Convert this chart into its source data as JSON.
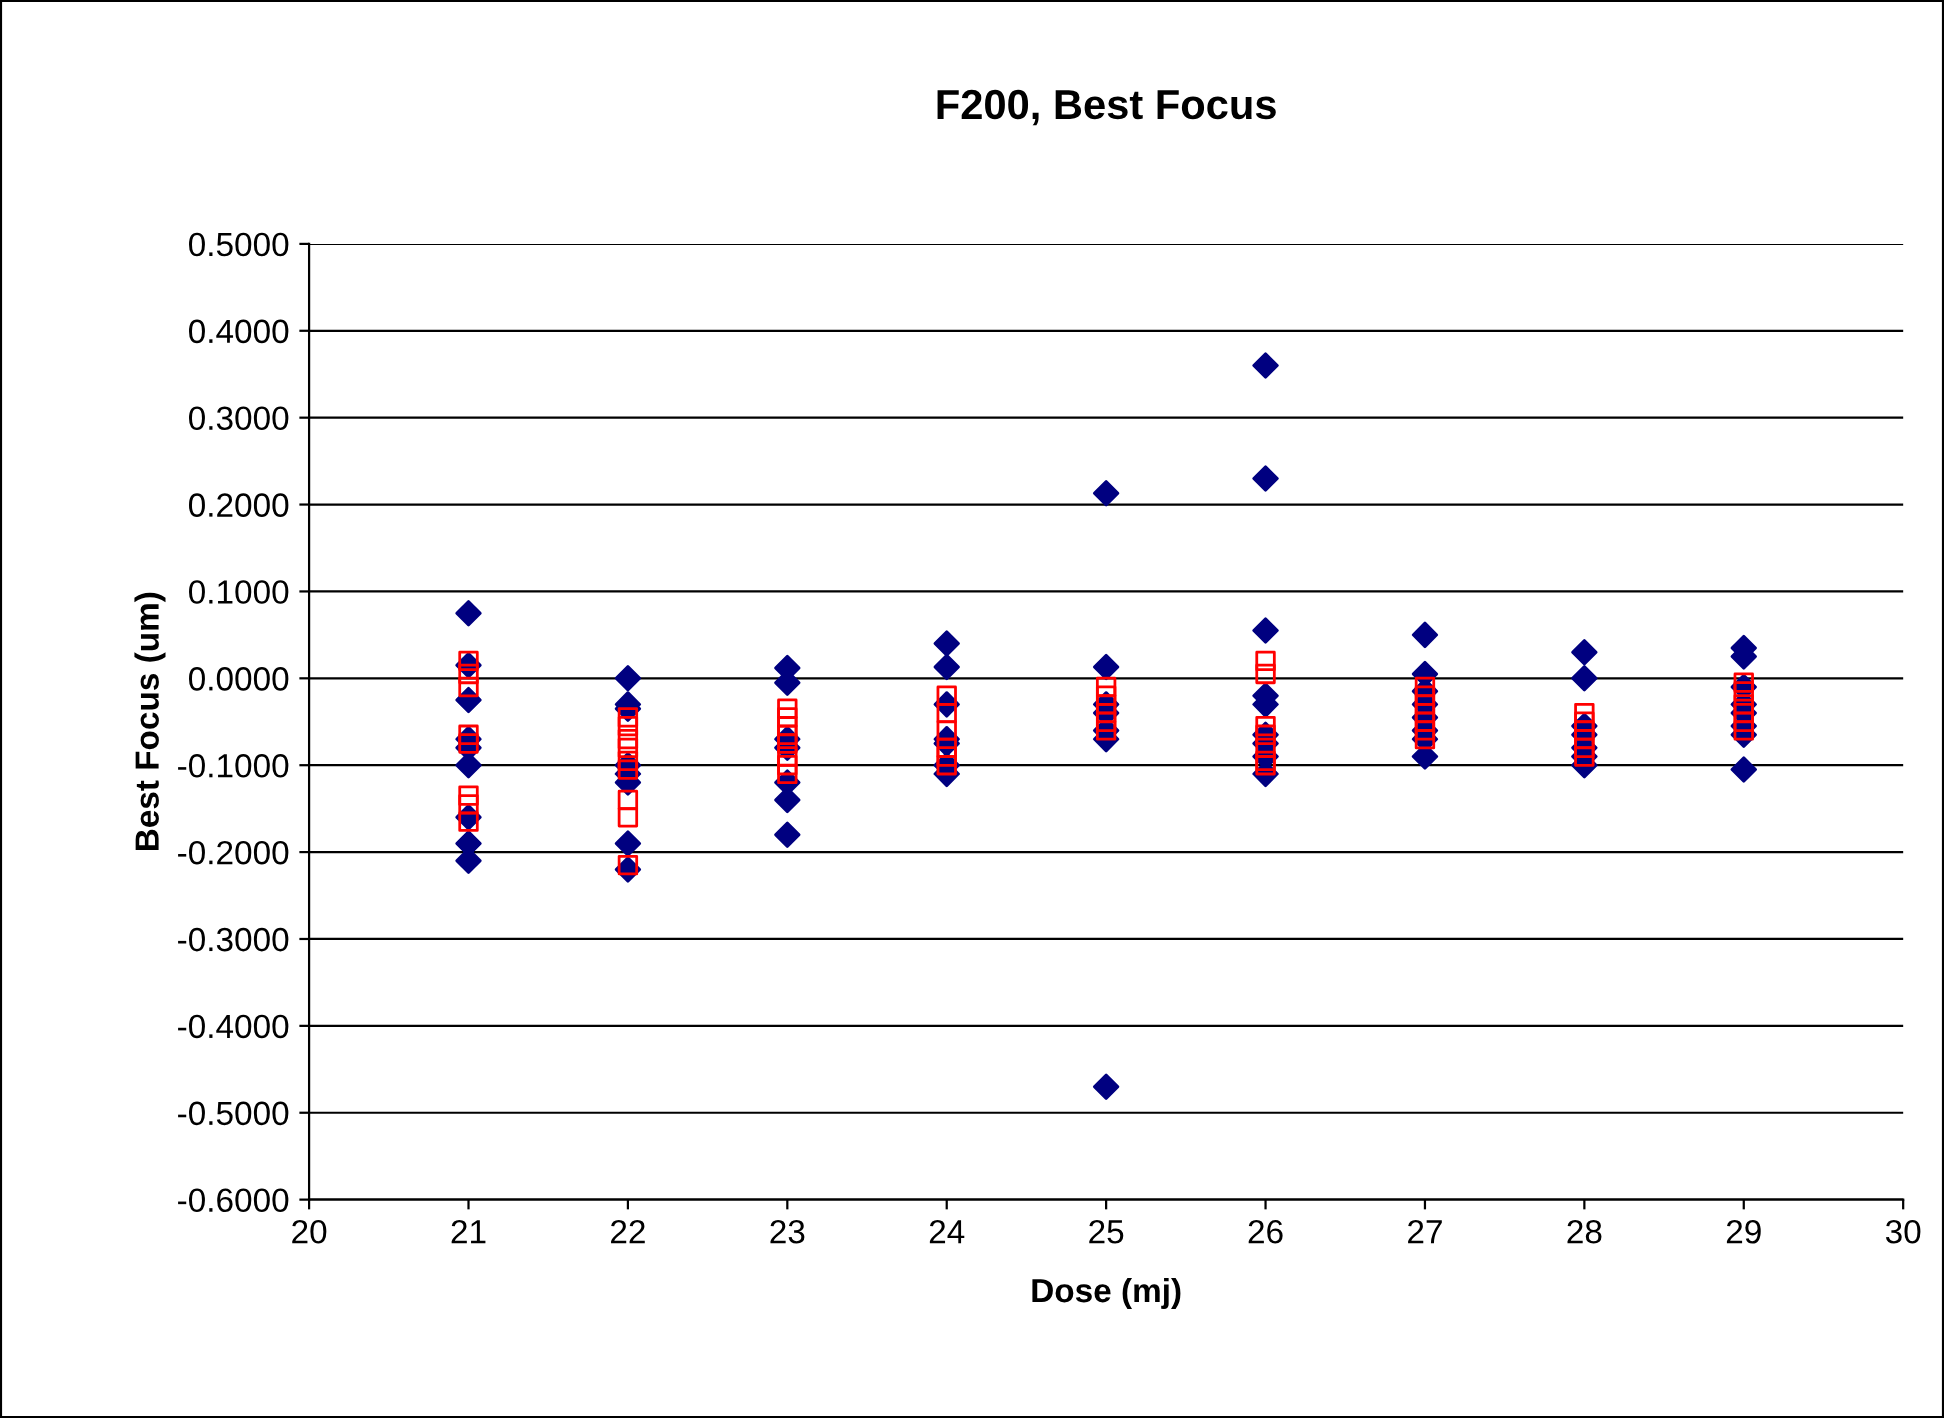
{
  "chart_data": {
    "type": "scatter",
    "title": "F200, Best Focus",
    "xlabel": "Dose (mj)",
    "ylabel": "Best Focus (um)",
    "xlim": [
      20,
      30
    ],
    "xticks": [
      20,
      21,
      22,
      23,
      24,
      25,
      26,
      27,
      28,
      29,
      30
    ],
    "ylim": [
      -0.6,
      0.5
    ],
    "yticks": [
      {
        "value": -0.6,
        "label": "-0.6000"
      },
      {
        "value": -0.5,
        "label": "-0.5000"
      },
      {
        "value": -0.4,
        "label": "-0.4000"
      },
      {
        "value": -0.3,
        "label": "-0.3000"
      },
      {
        "value": -0.2,
        "label": "-0.2000"
      },
      {
        "value": -0.1,
        "label": "-0.1000"
      },
      {
        "value": 0,
        "label": "0.0000"
      },
      {
        "value": 0.1,
        "label": "0.1000"
      },
      {
        "value": 0.2,
        "label": "0.2000"
      },
      {
        "value": 0.3,
        "label": "0.3000"
      },
      {
        "value": 0.4,
        "label": "0.4000"
      },
      {
        "value": 0.5,
        "label": "0.5000"
      }
    ],
    "grid": "y",
    "legend": false,
    "series": [
      {
        "color": "#000080",
        "marker": "diamond",
        "x": [
          21,
          21,
          21,
          21,
          21,
          21,
          21,
          21,
          21,
          22,
          22,
          22,
          22,
          22,
          22,
          22,
          22,
          23,
          23,
          23,
          23,
          23,
          23,
          23,
          24,
          24,
          24,
          24,
          24,
          24,
          24,
          25,
          25,
          25,
          25,
          25,
          25,
          25,
          26,
          26,
          26,
          26,
          26,
          26,
          26,
          26,
          26,
          27,
          27,
          27,
          27,
          27,
          27,
          27,
          27,
          28,
          28,
          28,
          28,
          28,
          28,
          28,
          29,
          29,
          29,
          29,
          29,
          29,
          29,
          29
        ],
        "values": [
          0.075,
          0.015,
          -0.025,
          -0.07,
          -0.08,
          -0.1,
          -0.16,
          -0.19,
          -0.21,
          0.0,
          -0.03,
          -0.035,
          -0.1,
          -0.11,
          -0.12,
          -0.19,
          -0.22,
          0.012,
          -0.005,
          -0.07,
          -0.08,
          -0.12,
          -0.14,
          -0.18,
          0.04,
          0.013,
          -0.03,
          -0.07,
          -0.075,
          -0.1,
          -0.11,
          0.213,
          0.013,
          -0.03,
          -0.04,
          -0.06,
          -0.07,
          -0.47,
          0.36,
          0.23,
          0.055,
          -0.02,
          -0.03,
          -0.065,
          -0.075,
          -0.09,
          -0.11,
          0.05,
          0.005,
          -0.015,
          -0.03,
          -0.045,
          -0.06,
          -0.07,
          -0.09,
          0.03,
          0.0,
          -0.055,
          -0.065,
          -0.08,
          -0.09,
          -0.1,
          0.035,
          0.025,
          -0.01,
          -0.03,
          -0.04,
          -0.055,
          -0.065,
          -0.105
        ]
      },
      {
        "color": "#ff0000",
        "marker": "square",
        "x": [
          21,
          21,
          21,
          21,
          21,
          21,
          21,
          21,
          22,
          22,
          22,
          22,
          22,
          22,
          22,
          22,
          22,
          23,
          23,
          23,
          23,
          23,
          23,
          23,
          23,
          24,
          24,
          24,
          24,
          24,
          24,
          25,
          25,
          25,
          25,
          25,
          25,
          26,
          26,
          26,
          26,
          26,
          26,
          26,
          27,
          27,
          27,
          27,
          27,
          27,
          27,
          28,
          28,
          28,
          28,
          28,
          28,
          29,
          29,
          29,
          29,
          29,
          29
        ],
        "values": [
          0.02,
          0.005,
          -0.01,
          -0.065,
          -0.075,
          -0.135,
          -0.145,
          -0.165,
          -0.045,
          -0.055,
          -0.07,
          -0.08,
          -0.095,
          -0.105,
          -0.14,
          -0.16,
          -0.215,
          -0.035,
          -0.045,
          -0.055,
          -0.065,
          -0.075,
          -0.09,
          -0.1,
          -0.11,
          -0.02,
          -0.04,
          -0.06,
          -0.08,
          -0.09,
          -0.1,
          -0.01,
          -0.02,
          -0.03,
          -0.04,
          -0.05,
          -0.06,
          0.02,
          0.005,
          -0.055,
          -0.065,
          -0.08,
          -0.095,
          -0.1,
          -0.01,
          -0.02,
          -0.03,
          -0.04,
          -0.05,
          -0.06,
          -0.07,
          -0.04,
          -0.05,
          -0.06,
          -0.07,
          -0.08,
          -0.09,
          -0.005,
          -0.015,
          -0.03,
          -0.04,
          -0.05,
          -0.06
        ]
      }
    ]
  }
}
